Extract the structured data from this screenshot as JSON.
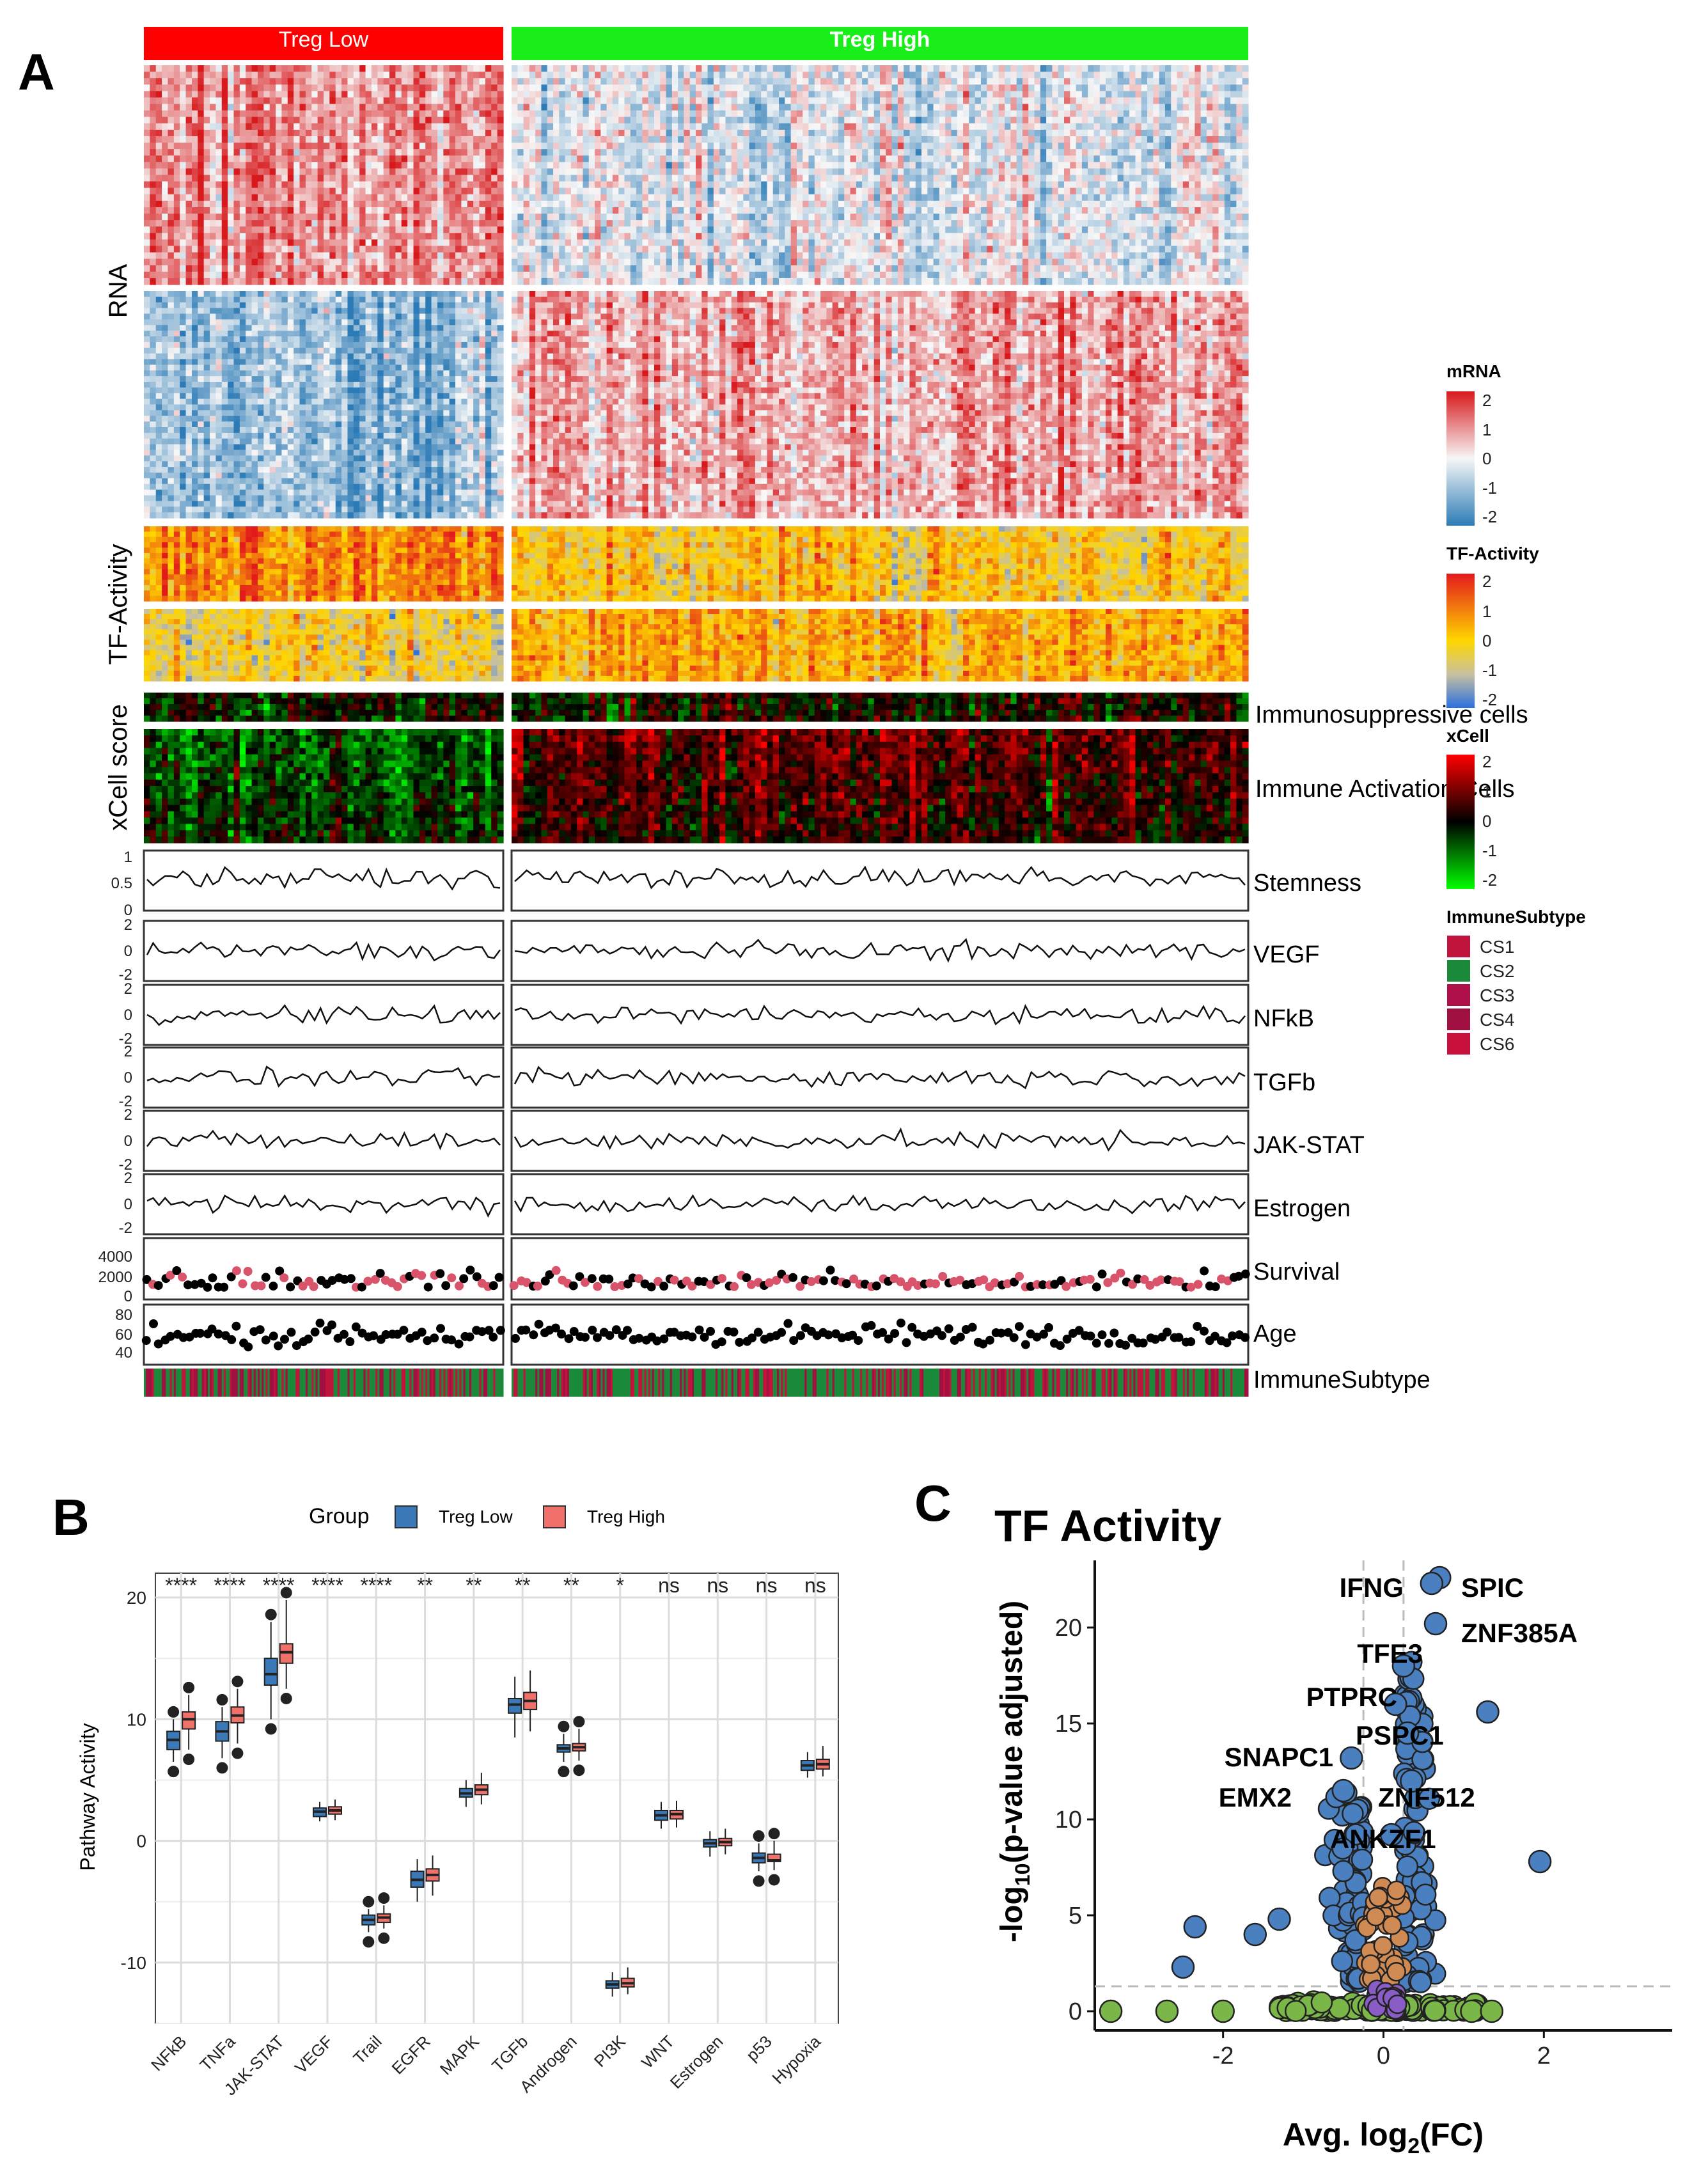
{
  "panels": {
    "a": "A",
    "b": "B",
    "c": "C"
  },
  "colors": {
    "treg_low": "#ff0000",
    "treg_high": "#1aee1a",
    "box_low": "#3a78b8",
    "box_high": "#f0706a",
    "volc_blue": "#4a80c0",
    "volc_green": "#7ab648",
    "volc_orange": "#d08a54",
    "volc_purple": "#8a5cc6",
    "surv_pink": "#d9546a",
    "cs_green": "#1a8a3a",
    "cs_red": "#c0143c"
  },
  "heatmap": {
    "group_low": "Treg Low",
    "group_high": "Treg High",
    "row_labels": {
      "rna": "RNA",
      "tf": "TF-Activity",
      "xcell": "xCell score"
    },
    "annotations": [
      "Immunosuppressive cells",
      "Immune Activation Cells"
    ],
    "tracks": [
      "Stemness",
      "VEGF",
      "NFkB",
      "TGFb",
      "JAK-STAT",
      "Estrogen",
      "Survival",
      "Age",
      "ImmuneSubtype"
    ],
    "track_ticks": {
      "stemness": [
        "1",
        "0.5",
        "0"
      ],
      "pathway": [
        "2",
        "0",
        "-2"
      ],
      "survival": [
        "4000",
        "2000",
        "0"
      ],
      "age": [
        "80",
        "60",
        "40"
      ]
    },
    "legends": {
      "mrna": {
        "title": "mRNA",
        "ticks": [
          "2",
          "1",
          "0",
          "-1",
          "-2"
        ]
      },
      "tf": {
        "title": "TF-Activity",
        "ticks": [
          "2",
          "1",
          "0",
          "-1",
          "-2"
        ]
      },
      "xcell": {
        "title": "xCell",
        "ticks": [
          "2",
          "1",
          "0",
          "-1",
          "-2"
        ]
      },
      "immune": {
        "title": "ImmuneSubtype",
        "items": [
          "CS1",
          "CS2",
          "CS3",
          "CS4",
          "CS6"
        ],
        "item_colors": [
          "#c0143c",
          "#1a8a3a",
          "#b0104a",
          "#a01040",
          "#c8103c"
        ]
      }
    }
  },
  "chart_data": [
    {
      "type": "heatmap",
      "title": "",
      "groups": [
        "Treg Low",
        "Treg High"
      ],
      "blocks": [
        "RNA",
        "TF-Activity",
        "xCell score"
      ],
      "tracks": [
        "Stemness",
        "VEGF",
        "NFkB",
        "TGFb",
        "JAK-STAT",
        "Estrogen",
        "Survival",
        "Age",
        "ImmuneSubtype"
      ],
      "color_range": [
        -2,
        2
      ]
    },
    {
      "type": "box",
      "title": "",
      "legend_title": "Group",
      "series_names": [
        "Treg Low",
        "Treg High"
      ],
      "ylabel": "Pathway Activity",
      "ylim": [
        -15,
        22
      ],
      "yticks": [
        -10,
        0,
        10,
        20
      ],
      "categories": [
        "NFkB",
        "TNFa",
        "JAK-STAT",
        "VEGF",
        "Trail",
        "EGFR",
        "MAPK",
        "TGFb",
        "Androgen",
        "PI3K",
        "WNT",
        "Estrogen",
        "p53",
        "Hypoxia"
      ],
      "significance": [
        "****",
        "****",
        "****",
        "****",
        "****",
        "**",
        "**",
        "**",
        "**",
        "*",
        "ns",
        "ns",
        "ns",
        "ns"
      ],
      "series": [
        {
          "name": "Treg Low",
          "stats": [
            [
              6.5,
              7.5,
              8.3,
              9.0,
              10.0
            ],
            [
              6.8,
              8.2,
              9.0,
              9.8,
              11.0
            ],
            [
              10,
              12.8,
              13.7,
              15.0,
              18.0
            ],
            [
              1.6,
              2.0,
              2.4,
              2.7,
              3.2
            ],
            [
              -7.5,
              -6.9,
              -6.5,
              -6.1,
              -5.6
            ],
            [
              -5.0,
              -3.8,
              -3.2,
              -2.5,
              -1.5
            ],
            [
              2.8,
              3.6,
              3.9,
              4.3,
              5.0
            ],
            [
              8.5,
              10.5,
              11.2,
              11.7,
              13.5
            ],
            [
              6.5,
              7.3,
              7.6,
              7.9,
              8.8
            ],
            [
              -12.8,
              -12.1,
              -11.8,
              -11.5,
              -10.8
            ],
            [
              1.0,
              1.7,
              2.1,
              2.5,
              3.2
            ],
            [
              -1.3,
              -0.5,
              -0.2,
              0.1,
              0.8
            ],
            [
              -2.5,
              -1.8,
              -1.4,
              -1.0,
              -0.2
            ],
            [
              5.2,
              5.8,
              6.2,
              6.6,
              7.3
            ]
          ]
        },
        {
          "name": "Treg High",
          "stats": [
            [
              7.5,
              9.2,
              10.0,
              10.6,
              12.0
            ],
            [
              8.0,
              9.7,
              10.3,
              11.0,
              12.5
            ],
            [
              12.5,
              14.6,
              15.5,
              16.2,
              19.8
            ],
            [
              1.7,
              2.2,
              2.5,
              2.8,
              3.4
            ],
            [
              -7.2,
              -6.7,
              -6.3,
              -6.0,
              -5.3
            ],
            [
              -4.5,
              -3.3,
              -2.8,
              -2.3,
              -1.2
            ],
            [
              3.0,
              3.8,
              4.2,
              4.6,
              5.6
            ],
            [
              9.0,
              10.8,
              11.5,
              12.2,
              14.0
            ],
            [
              6.6,
              7.4,
              7.7,
              8.0,
              9.2
            ],
            [
              -12.6,
              -12.0,
              -11.7,
              -11.3,
              -10.4
            ],
            [
              1.1,
              1.8,
              2.2,
              2.5,
              3.3
            ],
            [
              -1.1,
              -0.4,
              -0.1,
              0.2,
              1.0
            ],
            [
              -2.4,
              -1.7,
              -1.6,
              -1.1,
              0.0
            ],
            [
              5.3,
              5.9,
              6.3,
              6.7,
              7.8
            ]
          ]
        }
      ]
    },
    {
      "type": "scatter",
      "title": "TF Activity",
      "xlabel": "Avg. log2(FC)",
      "ylabel": "-log10(p-value adjusted)",
      "xlim": [
        -3.6,
        3.6
      ],
      "ylim": [
        -1.0,
        23.5
      ],
      "xticks": [
        -2,
        0,
        2
      ],
      "yticks": [
        0,
        5,
        10,
        15,
        20
      ],
      "thresholds": {
        "x": [
          -0.25,
          0.25
        ],
        "y": 1.3
      },
      "points": [
        {
          "x": 0.7,
          "y": 22.6,
          "label": "SPIC",
          "color": "#4a80c0"
        },
        {
          "x": 0.6,
          "y": 22.3,
          "label": "IFNG",
          "color": "#4a80c0"
        },
        {
          "x": 0.65,
          "y": 20.2,
          "label": "ZNF385A",
          "color": "#4a80c0"
        },
        {
          "x": 0.25,
          "y": 18.0,
          "label": "TFE3",
          "color": "#4a80c0"
        },
        {
          "x": 0.15,
          "y": 16.0,
          "label": "PTPRC",
          "color": "#4a80c0"
        },
        {
          "x": 1.3,
          "y": 15.6,
          "label": "",
          "color": "#4a80c0"
        },
        {
          "x": 0.3,
          "y": 14.5,
          "label": "PSPC1",
          "color": "#4a80c0"
        },
        {
          "x": -0.4,
          "y": 13.2,
          "label": "SNAPC1",
          "color": "#4a80c0"
        },
        {
          "x": 0.35,
          "y": 12.0,
          "label": "ZNF512",
          "color": "#4a80c0"
        },
        {
          "x": -0.5,
          "y": 11.5,
          "label": "EMX2",
          "color": "#4a80c0"
        },
        {
          "x": 0.1,
          "y": 9.2,
          "label": "ANKZF1",
          "color": "#4a80c0"
        },
        {
          "x": 1.95,
          "y": 7.8,
          "label": "",
          "color": "#4a80c0"
        },
        {
          "x": -2.35,
          "y": 4.4,
          "label": "",
          "color": "#4a80c0"
        },
        {
          "x": -2.5,
          "y": 2.3,
          "label": "",
          "color": "#4a80c0"
        },
        {
          "x": -1.3,
          "y": 4.8,
          "label": "",
          "color": "#4a80c0"
        },
        {
          "x": -1.6,
          "y": 4.0,
          "label": "",
          "color": "#4a80c0"
        },
        {
          "x": -3.4,
          "y": 0.0,
          "label": "",
          "color": "#7ab648"
        },
        {
          "x": -2.7,
          "y": 0.0,
          "label": "",
          "color": "#7ab648"
        },
        {
          "x": -2.0,
          "y": 0.0,
          "label": "",
          "color": "#7ab648"
        },
        {
          "x": 1.1,
          "y": 0.0,
          "label": "",
          "color": "#7ab648"
        },
        {
          "x": 1.35,
          "y": 0.0,
          "label": "",
          "color": "#7ab648"
        }
      ]
    }
  ],
  "panel_c": {
    "title": "TF Activity",
    "ylabel_prefix": "-log",
    "ylabel_sub": "10",
    "ylabel_suffix": "(p-value adjusted)",
    "xlabel_prefix": "Avg. log",
    "xlabel_sub": "2",
    "xlabel_suffix": "(FC)"
  }
}
